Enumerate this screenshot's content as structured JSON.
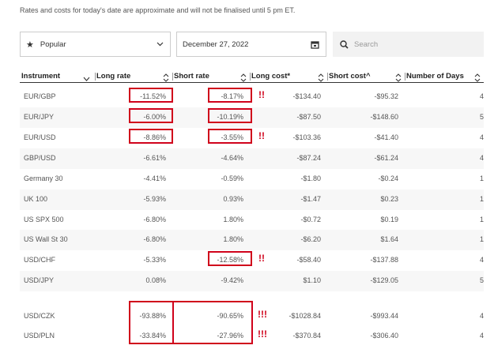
{
  "note": "Rates and costs for today's date are approximate and will not be finalised until 5 pm ET.",
  "controls": {
    "watchlist": "Popular",
    "date": "December 27, 2022",
    "search_placeholder": "Search"
  },
  "table": {
    "headers": [
      "Instrument",
      "Long rate",
      "Short rate",
      "Long cost*",
      "Short cost^",
      "Number of Days"
    ],
    "rows": [
      {
        "cells": [
          "EUR/GBP",
          "-11.52%",
          "-8.17%",
          "-$134.40",
          "-$95.32",
          "4"
        ],
        "flag": "!!"
      },
      {
        "cells": [
          "EUR/JPY",
          "-6.00%",
          "-10.19%",
          "-$87.50",
          "-$148.60",
          "5"
        ]
      },
      {
        "cells": [
          "EUR/USD",
          "-8.86%",
          "-3.55%",
          "-$103.36",
          "-$41.40",
          "4"
        ],
        "flag": "!!"
      },
      {
        "cells": [
          "GBP/USD",
          "-6.61%",
          "-4.64%",
          "-$87.24",
          "-$61.24",
          "4"
        ]
      },
      {
        "cells": [
          "Germany 30",
          "-4.41%",
          "-0.59%",
          "-$1.80",
          "-$0.24",
          "1"
        ]
      },
      {
        "cells": [
          "UK 100",
          "-5.93%",
          "0.93%",
          "-$1.47",
          "$0.23",
          "1"
        ]
      },
      {
        "cells": [
          "US SPX 500",
          "-6.80%",
          "1.80%",
          "-$0.72",
          "$0.19",
          "1"
        ]
      },
      {
        "cells": [
          "US Wall St 30",
          "-6.80%",
          "1.80%",
          "-$6.20",
          "$1.64",
          "1"
        ]
      },
      {
        "cells": [
          "USD/CHF",
          "-5.33%",
          "-12.58%",
          "-$58.40",
          "-$137.88",
          "4"
        ],
        "flag": "!!"
      },
      {
        "cells": [
          "USD/JPY",
          "0.08%",
          "-9.42%",
          "$1.10",
          "-$129.05",
          "5"
        ]
      },
      {
        "cells": [
          "USD/CZK",
          "-93.88%",
          "-90.65%",
          "-$1028.84",
          "-$993.44",
          "4"
        ],
        "flag": "!!!"
      },
      {
        "cells": [
          "USD/PLN",
          "-33.84%",
          "-27.96%",
          "-$370.84",
          "-$306.40",
          "4"
        ],
        "flag": "!!!"
      }
    ]
  }
}
